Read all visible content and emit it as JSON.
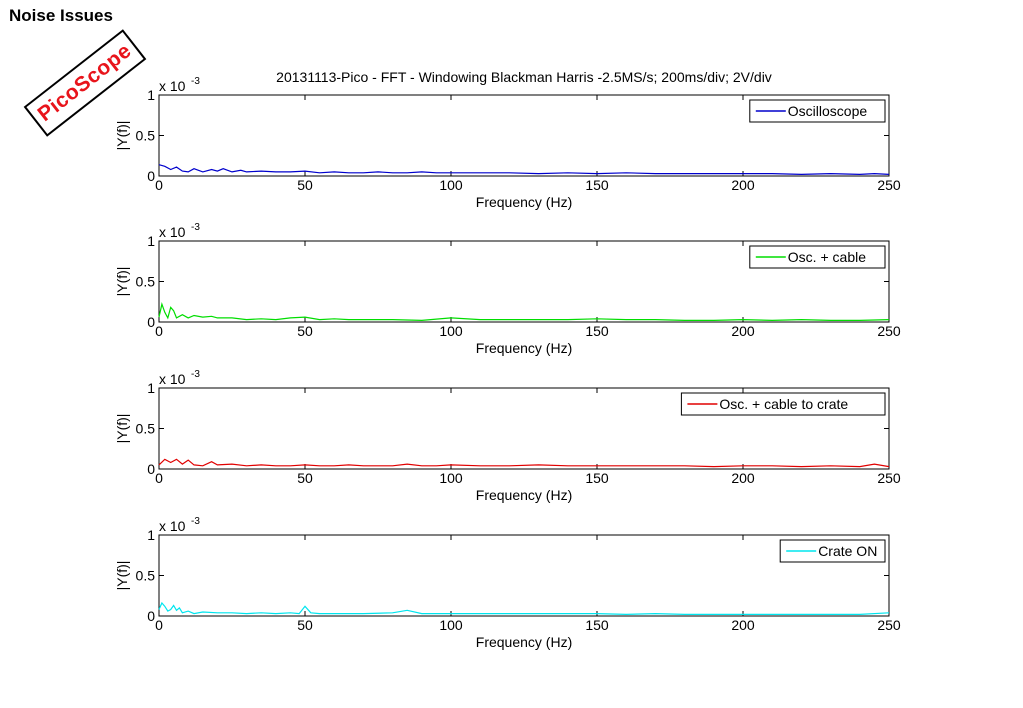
{
  "slide": {
    "title": "Noise Issues",
    "logo_text": "PicoScope",
    "logo_color": "#e8141b"
  },
  "chart_data": [
    {
      "type": "line",
      "title": "20131113-Pico - FFT - Windowing Blackman Harris -2.5MS/s; 200ms/div; 2V/div",
      "xlabel": "Frequency (Hz)",
      "ylabel": "|Y(f)|",
      "y_exponent_label": "x 10",
      "y_exponent": "-3",
      "xlim": [
        0,
        250
      ],
      "ylim": [
        0,
        1
      ],
      "xticks": [
        "0",
        "50",
        "100",
        "150",
        "200",
        "250"
      ],
      "yticks": [
        "0",
        "0.5",
        "1"
      ],
      "legend_position": "top-right",
      "series": [
        {
          "name": "Oscilloscope",
          "color": "#0000cc",
          "x": [
            0,
            2,
            4,
            6,
            8,
            10,
            12,
            15,
            18,
            20,
            22,
            25,
            28,
            30,
            35,
            40,
            45,
            50,
            55,
            60,
            65,
            70,
            75,
            80,
            85,
            90,
            95,
            100,
            110,
            120,
            130,
            140,
            150,
            160,
            170,
            180,
            190,
            200,
            210,
            220,
            230,
            240,
            245,
            250
          ],
          "y": [
            0.14,
            0.12,
            0.08,
            0.11,
            0.06,
            0.05,
            0.09,
            0.05,
            0.08,
            0.06,
            0.09,
            0.05,
            0.07,
            0.05,
            0.06,
            0.05,
            0.05,
            0.06,
            0.04,
            0.05,
            0.04,
            0.04,
            0.05,
            0.04,
            0.04,
            0.05,
            0.04,
            0.04,
            0.04,
            0.04,
            0.03,
            0.04,
            0.03,
            0.04,
            0.03,
            0.03,
            0.03,
            0.03,
            0.03,
            0.02,
            0.03,
            0.02,
            0.03,
            0.02
          ]
        }
      ]
    },
    {
      "type": "line",
      "title": "",
      "xlabel": "Frequency (Hz)",
      "ylabel": "|Y(f)|",
      "y_exponent_label": "x 10",
      "y_exponent": "-3",
      "xlim": [
        0,
        250
      ],
      "ylim": [
        0,
        1
      ],
      "xticks": [
        "0",
        "50",
        "100",
        "150",
        "200",
        "250"
      ],
      "yticks": [
        "0",
        "0.5",
        "1"
      ],
      "legend_position": "top-right",
      "series": [
        {
          "name": "Osc. + cable",
          "color": "#00dd00",
          "x": [
            0,
            1,
            2,
            3,
            4,
            5,
            6,
            8,
            10,
            12,
            15,
            18,
            20,
            25,
            30,
            35,
            40,
            45,
            50,
            55,
            60,
            65,
            70,
            80,
            90,
            100,
            110,
            120,
            130,
            140,
            150,
            160,
            170,
            180,
            190,
            200,
            210,
            220,
            230,
            240,
            250
          ],
          "y": [
            0.06,
            0.22,
            0.12,
            0.05,
            0.18,
            0.14,
            0.05,
            0.09,
            0.05,
            0.08,
            0.06,
            0.07,
            0.05,
            0.05,
            0.03,
            0.04,
            0.03,
            0.05,
            0.06,
            0.03,
            0.04,
            0.03,
            0.03,
            0.03,
            0.02,
            0.05,
            0.03,
            0.03,
            0.03,
            0.03,
            0.04,
            0.03,
            0.03,
            0.02,
            0.02,
            0.03,
            0.02,
            0.03,
            0.02,
            0.02,
            0.03
          ]
        }
      ]
    },
    {
      "type": "line",
      "title": "",
      "xlabel": "Frequency (Hz)",
      "ylabel": "|Y(f)|",
      "y_exponent_label": "x 10",
      "y_exponent": "-3",
      "xlim": [
        0,
        250
      ],
      "ylim": [
        0,
        1
      ],
      "xticks": [
        "0",
        "50",
        "100",
        "150",
        "200",
        "250"
      ],
      "yticks": [
        "0",
        "0.5",
        "1"
      ],
      "legend_position": "top-right",
      "series": [
        {
          "name": "Osc. + cable to crate",
          "color": "#e00000",
          "x": [
            0,
            2,
            4,
            6,
            8,
            10,
            12,
            15,
            18,
            20,
            25,
            30,
            35,
            40,
            45,
            50,
            55,
            60,
            65,
            70,
            75,
            80,
            85,
            90,
            95,
            100,
            110,
            120,
            130,
            140,
            150,
            160,
            170,
            180,
            190,
            200,
            210,
            220,
            230,
            240,
            245,
            250
          ],
          "y": [
            0.05,
            0.12,
            0.08,
            0.12,
            0.06,
            0.11,
            0.05,
            0.04,
            0.09,
            0.05,
            0.06,
            0.04,
            0.05,
            0.04,
            0.04,
            0.05,
            0.04,
            0.04,
            0.05,
            0.04,
            0.04,
            0.04,
            0.06,
            0.04,
            0.04,
            0.05,
            0.04,
            0.04,
            0.05,
            0.04,
            0.04,
            0.04,
            0.04,
            0.04,
            0.03,
            0.04,
            0.04,
            0.03,
            0.04,
            0.03,
            0.06,
            0.03
          ]
        }
      ]
    },
    {
      "type": "line",
      "title": "",
      "xlabel": "Frequency (Hz)",
      "ylabel": "|Y(f)|",
      "y_exponent_label": "x 10",
      "y_exponent": "-3",
      "xlim": [
        0,
        250
      ],
      "ylim": [
        0,
        1
      ],
      "xticks": [
        "0",
        "50",
        "100",
        "150",
        "200",
        "250"
      ],
      "yticks": [
        "0",
        "0.5",
        "1"
      ],
      "legend_position": "top-right",
      "series": [
        {
          "name": "Crate ON",
          "color": "#00e5ee",
          "x": [
            0,
            1,
            2,
            3,
            4,
            5,
            6,
            7,
            8,
            10,
            12,
            15,
            20,
            25,
            30,
            35,
            40,
            45,
            48,
            50,
            52,
            55,
            60,
            70,
            80,
            85,
            90,
            100,
            110,
            120,
            130,
            140,
            150,
            160,
            170,
            180,
            190,
            200,
            210,
            220,
            230,
            240,
            250
          ],
          "y": [
            0.08,
            0.16,
            0.12,
            0.06,
            0.08,
            0.13,
            0.07,
            0.1,
            0.04,
            0.06,
            0.03,
            0.05,
            0.04,
            0.04,
            0.03,
            0.04,
            0.03,
            0.04,
            0.03,
            0.12,
            0.04,
            0.03,
            0.03,
            0.03,
            0.04,
            0.07,
            0.03,
            0.03,
            0.03,
            0.03,
            0.03,
            0.03,
            0.03,
            0.02,
            0.03,
            0.02,
            0.02,
            0.02,
            0.02,
            0.02,
            0.02,
            0.02,
            0.04
          ]
        }
      ]
    }
  ]
}
